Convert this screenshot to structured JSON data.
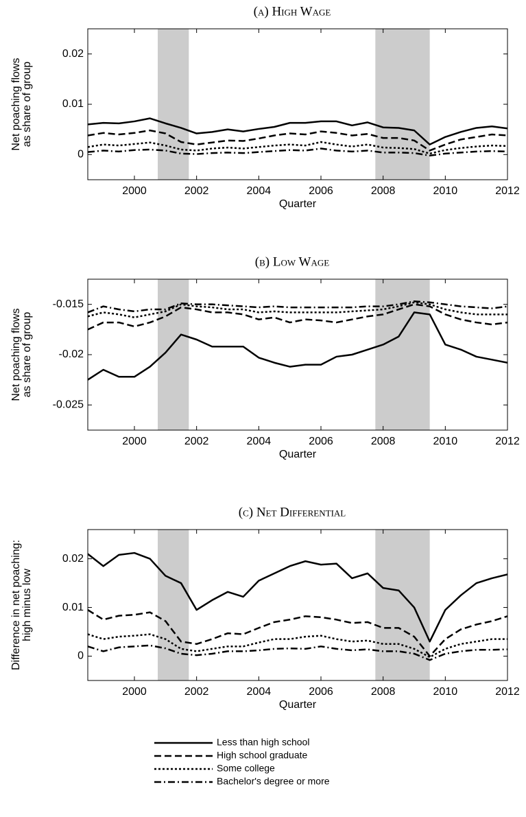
{
  "chart_data": [
    {
      "type": "line",
      "title": "(a) High Wage",
      "xlabel": "Quarter",
      "ylabel": [
        "Net poaching flows",
        "as share of group"
      ],
      "x": [
        1998.5,
        1999,
        1999.5,
        2000,
        2000.5,
        2001,
        2001.5,
        2002,
        2002.5,
        2003,
        2003.5,
        2004,
        2004.5,
        2005,
        2005.5,
        2006,
        2006.5,
        2007,
        2007.5,
        2008,
        2008.5,
        2009,
        2009.5,
        2010,
        2010.5,
        2011,
        2011.5,
        2012
      ],
      "xlim": [
        1998.5,
        2012
      ],
      "xticks": [
        2000,
        2002,
        2004,
        2006,
        2008,
        2010,
        2012
      ],
      "ylim": [
        -0.005,
        0.025
      ],
      "yticks": [
        0,
        0.01,
        0.02
      ],
      "shaded_regions": [
        [
          2000.75,
          2001.75
        ],
        [
          2007.75,
          2009.5
        ]
      ],
      "series": [
        {
          "dash": "solid",
          "color": "#000000",
          "values": [
            0.006,
            0.0063,
            0.0062,
            0.0066,
            0.0072,
            0.0062,
            0.0053,
            0.0042,
            0.0045,
            0.005,
            0.0046,
            0.0051,
            0.0055,
            0.0063,
            0.0063,
            0.0066,
            0.0066,
            0.0058,
            0.0064,
            0.0054,
            0.0053,
            0.0048,
            0.002,
            0.0035,
            0.0045,
            0.0053,
            0.0056,
            0.0052
          ]
        },
        {
          "dash": "dashed",
          "color": "#000000",
          "values": [
            0.0038,
            0.0043,
            0.004,
            0.0043,
            0.0048,
            0.0042,
            0.0025,
            0.002,
            0.0024,
            0.0028,
            0.0027,
            0.0032,
            0.0038,
            0.0042,
            0.004,
            0.0046,
            0.0043,
            0.0038,
            0.0041,
            0.0033,
            0.0033,
            0.0028,
            0.0008,
            0.002,
            0.003,
            0.0035,
            0.004,
            0.0038
          ]
        },
        {
          "dash": "dotted",
          "color": "#000000",
          "values": [
            0.0015,
            0.002,
            0.0018,
            0.0021,
            0.0024,
            0.0018,
            0.001,
            0.0008,
            0.0012,
            0.0014,
            0.0012,
            0.0015,
            0.0018,
            0.002,
            0.0018,
            0.0025,
            0.002,
            0.0016,
            0.002,
            0.0014,
            0.0013,
            0.0011,
            0.0002,
            0.0009,
            0.0013,
            0.0016,
            0.0018,
            0.0017
          ]
        },
        {
          "dash": "dashdot",
          "color": "#000000",
          "values": [
            0.0005,
            0.0008,
            0.0006,
            0.0009,
            0.001,
            0.0008,
            0.0002,
            0.0001,
            0.0003,
            0.0004,
            0.0003,
            0.0005,
            0.0007,
            0.0009,
            0.0008,
            0.0012,
            0.0008,
            0.0006,
            0.0008,
            0.0004,
            0.0004,
            0.0003,
            -0.0002,
            0.0002,
            0.0004,
            0.0006,
            0.0007,
            0.0006
          ]
        }
      ]
    },
    {
      "type": "line",
      "title": "(b) Low Wage",
      "xlabel": "Quarter",
      "ylabel": [
        "Net poaching flows",
        "as share of group"
      ],
      "x": [
        1998.5,
        1999,
        1999.5,
        2000,
        2000.5,
        2001,
        2001.5,
        2002,
        2002.5,
        2003,
        2003.5,
        2004,
        2004.5,
        2005,
        2005.5,
        2006,
        2006.5,
        2007,
        2007.5,
        2008,
        2008.5,
        2009,
        2009.5,
        2010,
        2010.5,
        2011,
        2011.5,
        2012
      ],
      "xlim": [
        1998.5,
        2012
      ],
      "xticks": [
        2000,
        2002,
        2004,
        2006,
        2008,
        2010,
        2012
      ],
      "ylim": [
        -0.0275,
        -0.0125
      ],
      "yticks": [
        -0.025,
        -0.02,
        -0.015
      ],
      "shaded_regions": [
        [
          2000.75,
          2001.75
        ],
        [
          2007.75,
          2009.5
        ]
      ],
      "series": [
        {
          "dash": "solid",
          "color": "#000000",
          "values": [
            -0.0225,
            -0.0215,
            -0.0222,
            -0.0222,
            -0.0212,
            -0.0198,
            -0.018,
            -0.0185,
            -0.0192,
            -0.0192,
            -0.0192,
            -0.0203,
            -0.0208,
            -0.0212,
            -0.021,
            -0.021,
            -0.0202,
            -0.02,
            -0.0195,
            -0.019,
            -0.0182,
            -0.0158,
            -0.016,
            -0.019,
            -0.0195,
            -0.0202,
            -0.0205,
            -0.0208
          ]
        },
        {
          "dash": "dashed",
          "color": "#000000",
          "values": [
            -0.0175,
            -0.0168,
            -0.0168,
            -0.0172,
            -0.0168,
            -0.0162,
            -0.0153,
            -0.0155,
            -0.0158,
            -0.0158,
            -0.016,
            -0.0165,
            -0.0163,
            -0.0168,
            -0.0165,
            -0.0166,
            -0.0168,
            -0.0165,
            -0.0162,
            -0.016,
            -0.0155,
            -0.015,
            -0.0152,
            -0.016,
            -0.0165,
            -0.0168,
            -0.017,
            -0.0168
          ]
        },
        {
          "dash": "dotted",
          "color": "#000000",
          "values": [
            -0.0162,
            -0.0158,
            -0.016,
            -0.0163,
            -0.016,
            -0.0157,
            -0.015,
            -0.0152,
            -0.0153,
            -0.0155,
            -0.0155,
            -0.0158,
            -0.0157,
            -0.0158,
            -0.0158,
            -0.0158,
            -0.0158,
            -0.0157,
            -0.0156,
            -0.0155,
            -0.0152,
            -0.0148,
            -0.015,
            -0.0155,
            -0.0158,
            -0.016,
            -0.016,
            -0.016
          ]
        },
        {
          "dash": "dashdot",
          "color": "#000000",
          "values": [
            -0.0158,
            -0.0152,
            -0.0155,
            -0.0157,
            -0.0155,
            -0.0155,
            -0.0149,
            -0.015,
            -0.015,
            -0.0151,
            -0.0152,
            -0.0153,
            -0.0152,
            -0.0153,
            -0.0153,
            -0.0153,
            -0.0153,
            -0.0153,
            -0.0152,
            -0.0152,
            -0.015,
            -0.0147,
            -0.0148,
            -0.015,
            -0.0152,
            -0.0153,
            -0.0154,
            -0.0152
          ]
        }
      ]
    },
    {
      "type": "line",
      "title": "(c) Net Differential",
      "xlabel": "Quarter",
      "ylabel": [
        "Difference in net poaching:",
        "high minus low"
      ],
      "x": [
        1998.5,
        1999,
        1999.5,
        2000,
        2000.5,
        2001,
        2001.5,
        2002,
        2002.5,
        2003,
        2003.5,
        2004,
        2004.5,
        2005,
        2005.5,
        2006,
        2006.5,
        2007,
        2007.5,
        2008,
        2008.5,
        2009,
        2009.5,
        2010,
        2010.5,
        2011,
        2011.5,
        2012
      ],
      "xlim": [
        1998.5,
        2012
      ],
      "xticks": [
        2000,
        2002,
        2004,
        2006,
        2008,
        2010,
        2012
      ],
      "ylim": [
        -0.005,
        0.026
      ],
      "yticks": [
        0,
        0.01,
        0.02
      ],
      "shaded_regions": [
        [
          2000.75,
          2001.75
        ],
        [
          2007.75,
          2009.5
        ]
      ],
      "series": [
        {
          "dash": "solid",
          "color": "#000000",
          "values": [
            0.021,
            0.0185,
            0.0208,
            0.0212,
            0.02,
            0.0165,
            0.015,
            0.0095,
            0.0115,
            0.0132,
            0.0122,
            0.0155,
            0.017,
            0.0185,
            0.0195,
            0.0188,
            0.019,
            0.016,
            0.017,
            0.014,
            0.0135,
            0.01,
            0.003,
            0.0095,
            0.0125,
            0.015,
            0.016,
            0.0168
          ]
        },
        {
          "dash": "dashed",
          "color": "#000000",
          "values": [
            0.0095,
            0.0075,
            0.0083,
            0.0085,
            0.009,
            0.0072,
            0.003,
            0.0025,
            0.0035,
            0.0047,
            0.0045,
            0.0058,
            0.007,
            0.0075,
            0.0082,
            0.008,
            0.0075,
            0.0068,
            0.007,
            0.0058,
            0.0058,
            0.004,
            0.0,
            0.0035,
            0.0055,
            0.0065,
            0.0072,
            0.0082
          ]
        },
        {
          "dash": "dotted",
          "color": "#000000",
          "values": [
            0.0045,
            0.0035,
            0.004,
            0.0042,
            0.0045,
            0.0035,
            0.0015,
            0.001,
            0.0015,
            0.002,
            0.002,
            0.0028,
            0.0035,
            0.0035,
            0.004,
            0.0042,
            0.0035,
            0.003,
            0.0032,
            0.0025,
            0.0025,
            0.0015,
            -0.0002,
            0.0015,
            0.0025,
            0.003,
            0.0035,
            0.0035
          ]
        },
        {
          "dash": "dashdot",
          "color": "#000000",
          "values": [
            0.002,
            0.001,
            0.0018,
            0.002,
            0.0022,
            0.0016,
            0.0005,
            0.0002,
            0.0005,
            0.001,
            0.001,
            0.0012,
            0.0015,
            0.0016,
            0.0015,
            0.002,
            0.0015,
            0.0012,
            0.0014,
            0.001,
            0.001,
            0.0005,
            -0.0008,
            0.0005,
            0.001,
            0.0013,
            0.0013,
            0.0014
          ]
        }
      ]
    }
  ],
  "legend": [
    "Less than high school",
    "High school graduate",
    "Some college",
    "Bachelor's degree or more"
  ]
}
